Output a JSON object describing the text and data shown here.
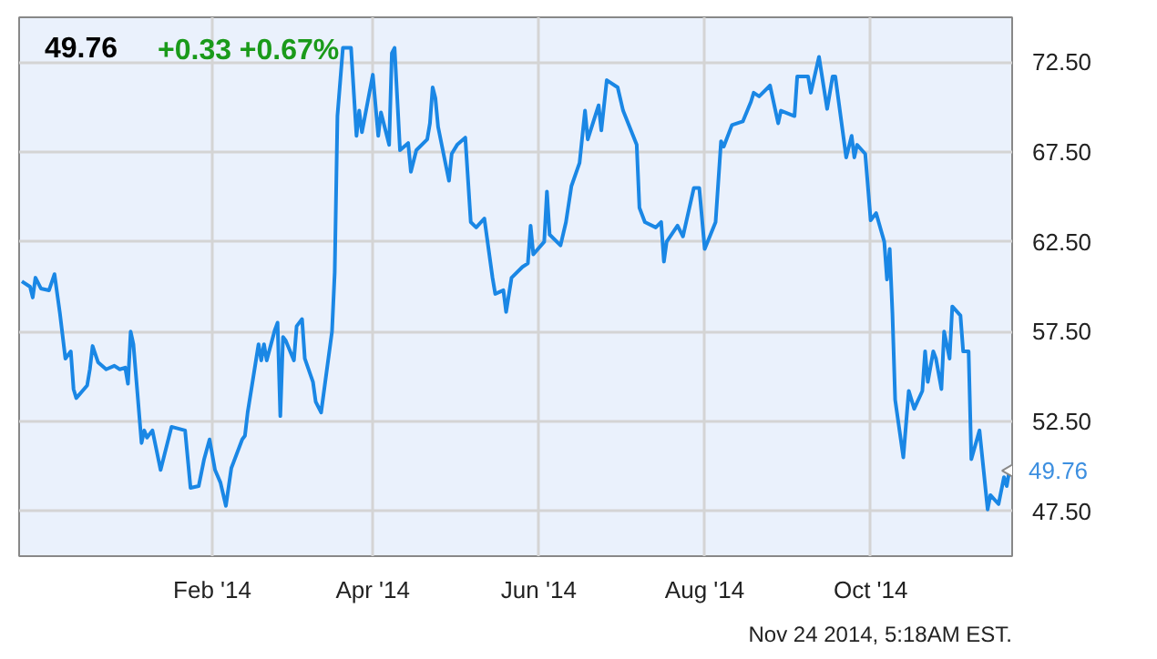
{
  "chart_data": {
    "type": "line",
    "title": "49.76",
    "subtitle": "+0.33  +0.67%",
    "annotations": [
      "Nov 24 2014, 5:18AM EST.",
      {
        "text": "49.76",
        "x": "2014-11-21",
        "y": 49.76
      }
    ],
    "x": [
      "2013-11-23",
      "2013-11-26",
      "2013-11-27",
      "2013-11-28",
      "2013-11-30",
      "2013-12-03",
      "2013-12-05",
      "2013-12-07",
      "2013-12-09",
      "2013-12-11",
      "2013-12-12",
      "2013-12-13",
      "2013-12-17",
      "2013-12-18",
      "2013-12-19",
      "2013-12-21",
      "2013-12-24",
      "2013-12-27",
      "2013-12-29",
      "2013-12-31",
      "2014-01-01",
      "2014-01-02",
      "2014-01-03",
      "2014-01-06",
      "2014-01-07",
      "2014-01-08",
      "2014-01-10",
      "2014-01-13",
      "2014-01-17",
      "2014-01-22",
      "2014-01-24",
      "2014-01-27",
      "2014-01-29",
      "2014-01-31",
      "2014-02-02",
      "2014-02-04",
      "2014-02-06",
      "2014-02-08",
      "2014-02-12",
      "2014-02-13",
      "2014-02-14",
      "2014-02-18",
      "2014-02-19",
      "2014-02-20",
      "2014-02-21",
      "2014-02-24",
      "2014-02-25",
      "2014-02-26",
      "2014-02-27",
      "2014-02-28",
      "2014-03-03",
      "2014-03-04",
      "2014-03-06",
      "2014-03-07",
      "2014-03-10",
      "2014-03-11",
      "2014-03-13",
      "2014-03-17",
      "2014-03-18",
      "2014-03-19",
      "2014-03-21",
      "2014-03-24",
      "2014-03-26",
      "2014-03-27",
      "2014-03-28",
      "2014-04-01",
      "2014-04-03",
      "2014-04-04",
      "2014-04-07",
      "2014-04-08",
      "2014-04-09",
      "2014-04-11",
      "2014-04-14",
      "2014-04-15",
      "2014-04-17",
      "2014-04-21",
      "2014-04-22",
      "2014-04-23",
      "2014-04-24",
      "2014-04-25",
      "2014-04-29",
      "2014-04-30",
      "2014-05-02",
      "2014-05-05",
      "2014-05-07",
      "2014-05-09",
      "2014-05-12",
      "2014-05-15",
      "2014-05-16",
      "2014-05-19",
      "2014-05-20",
      "2014-05-22",
      "2014-05-26",
      "2014-05-28",
      "2014-05-29",
      "2014-05-30",
      "2014-06-03",
      "2014-06-04",
      "2014-06-05",
      "2014-06-09",
      "2014-06-11",
      "2014-06-13",
      "2014-06-16",
      "2014-06-18",
      "2014-06-19",
      "2014-06-23",
      "2014-06-24",
      "2014-06-26",
      "2014-06-30",
      "2014-07-02",
      "2014-07-07",
      "2014-07-08",
      "2014-07-10",
      "2014-07-14",
      "2014-07-16",
      "2014-07-17",
      "2014-07-18",
      "2014-07-22",
      "2014-07-24",
      "2014-07-28",
      "2014-07-30",
      "2014-08-01",
      "2014-08-05",
      "2014-08-07",
      "2014-08-08",
      "2014-08-11",
      "2014-08-15",
      "2014-08-18",
      "2014-08-19",
      "2014-08-21",
      "2014-08-25",
      "2014-08-28",
      "2014-08-29",
      "2014-09-03",
      "2014-09-04",
      "2014-09-08",
      "2014-09-09",
      "2014-09-12",
      "2014-09-15",
      "2014-09-17",
      "2014-09-18",
      "2014-09-22",
      "2014-09-24",
      "2014-09-25",
      "2014-09-26",
      "2014-09-29",
      "2014-10-01",
      "2014-10-03",
      "2014-10-06",
      "2014-10-07",
      "2014-10-08",
      "2014-10-09",
      "2014-10-10",
      "2014-10-13",
      "2014-10-15",
      "2014-10-17",
      "2014-10-20",
      "2014-10-21",
      "2014-10-22",
      "2014-10-24",
      "2014-10-25",
      "2014-10-27",
      "2014-10-28",
      "2014-10-30",
      "2014-10-31",
      "2014-11-03",
      "2014-11-04",
      "2014-11-06",
      "2014-11-07",
      "2014-11-10",
      "2014-11-13",
      "2014-11-14",
      "2014-11-17",
      "2014-11-19",
      "2014-11-20",
      "2014-11-21"
    ],
    "series": [
      {
        "color": "#1a87e5",
        "values": [
          60.3,
          60.0,
          59.4,
          60.5,
          59.9,
          59.8,
          60.7,
          58.5,
          56.0,
          56.4,
          54.3,
          53.8,
          54.5,
          55.4,
          56.7,
          55.8,
          55.4,
          55.6,
          55.4,
          55.5,
          54.6,
          57.5,
          56.8,
          51.3,
          52.0,
          51.6,
          52.0,
          49.8,
          52.2,
          52.0,
          48.8,
          48.9,
          50.4,
          51.5,
          49.8,
          49.1,
          47.8,
          49.9,
          51.5,
          51.7,
          53.0,
          56.8,
          55.9,
          56.8,
          55.9,
          57.6,
          58.0,
          52.8,
          57.2,
          57.0,
          55.9,
          57.8,
          58.2,
          56.0,
          54.7,
          53.6,
          53.0,
          57.5,
          60.8,
          69.5,
          73.3,
          73.3,
          68.4,
          69.8,
          68.6,
          71.8,
          68.4,
          69.7,
          67.9,
          73.0,
          73.3,
          67.6,
          68.0,
          66.4,
          67.6,
          68.2,
          69.1,
          71.1,
          70.5,
          68.9,
          65.9,
          67.4,
          67.9,
          68.3,
          63.6,
          63.3,
          63.8,
          60.5,
          59.6,
          59.8,
          58.6,
          60.5,
          61.1,
          61.3,
          63.4,
          61.8,
          62.5,
          65.3,
          62.9,
          62.3,
          63.6,
          65.6,
          66.9,
          69.8,
          68.2,
          70.1,
          68.7,
          71.5,
          71.1,
          69.8,
          67.9,
          64.4,
          63.6,
          63.3,
          63.6,
          61.4,
          62.5,
          63.4,
          62.8,
          65.5,
          65.5,
          62.1,
          63.6,
          68.1,
          67.8,
          69.0,
          69.2,
          70.3,
          70.8,
          70.6,
          71.2,
          69.1,
          69.8,
          69.5,
          71.7,
          71.7,
          70.8,
          72.8,
          69.9,
          71.7,
          71.7,
          67.2,
          68.4,
          67.2,
          67.9,
          67.4,
          63.7,
          64.1,
          62.5,
          60.4,
          62.1,
          58.5,
          53.7,
          50.5,
          54.2,
          53.2,
          54.2,
          56.4,
          54.7,
          56.4,
          56.0,
          54.3,
          57.5,
          56.0,
          58.9,
          58.4,
          56.4,
          56.4,
          50.4,
          52.0,
          47.6,
          48.4,
          47.9,
          49.4,
          48.9,
          49.76
        ]
      }
    ],
    "xlim": [
      "2013-11-22",
      "2014-11-22"
    ],
    "xticks": [
      {
        "value": "2014-02-01",
        "label": "Feb '14"
      },
      {
        "value": "2014-04-01",
        "label": "Apr '14"
      },
      {
        "value": "2014-06-01",
        "label": "Jun '14"
      },
      {
        "value": "2014-08-01",
        "label": "Aug '14"
      },
      {
        "value": "2014-10-01",
        "label": "Oct '14"
      }
    ],
    "ylim": [
      45,
      75
    ],
    "yticks": [
      {
        "value": 47.5,
        "label": "47.50"
      },
      {
        "value": 52.5,
        "label": "52.50"
      },
      {
        "value": 57.5,
        "label": "57.50"
      },
      {
        "value": 62.5,
        "label": "62.50"
      },
      {
        "value": 67.5,
        "label": "67.50"
      },
      {
        "value": 72.5,
        "label": "72.50"
      }
    ],
    "grid": true,
    "marker": "none",
    "line_style": "solid"
  }
}
